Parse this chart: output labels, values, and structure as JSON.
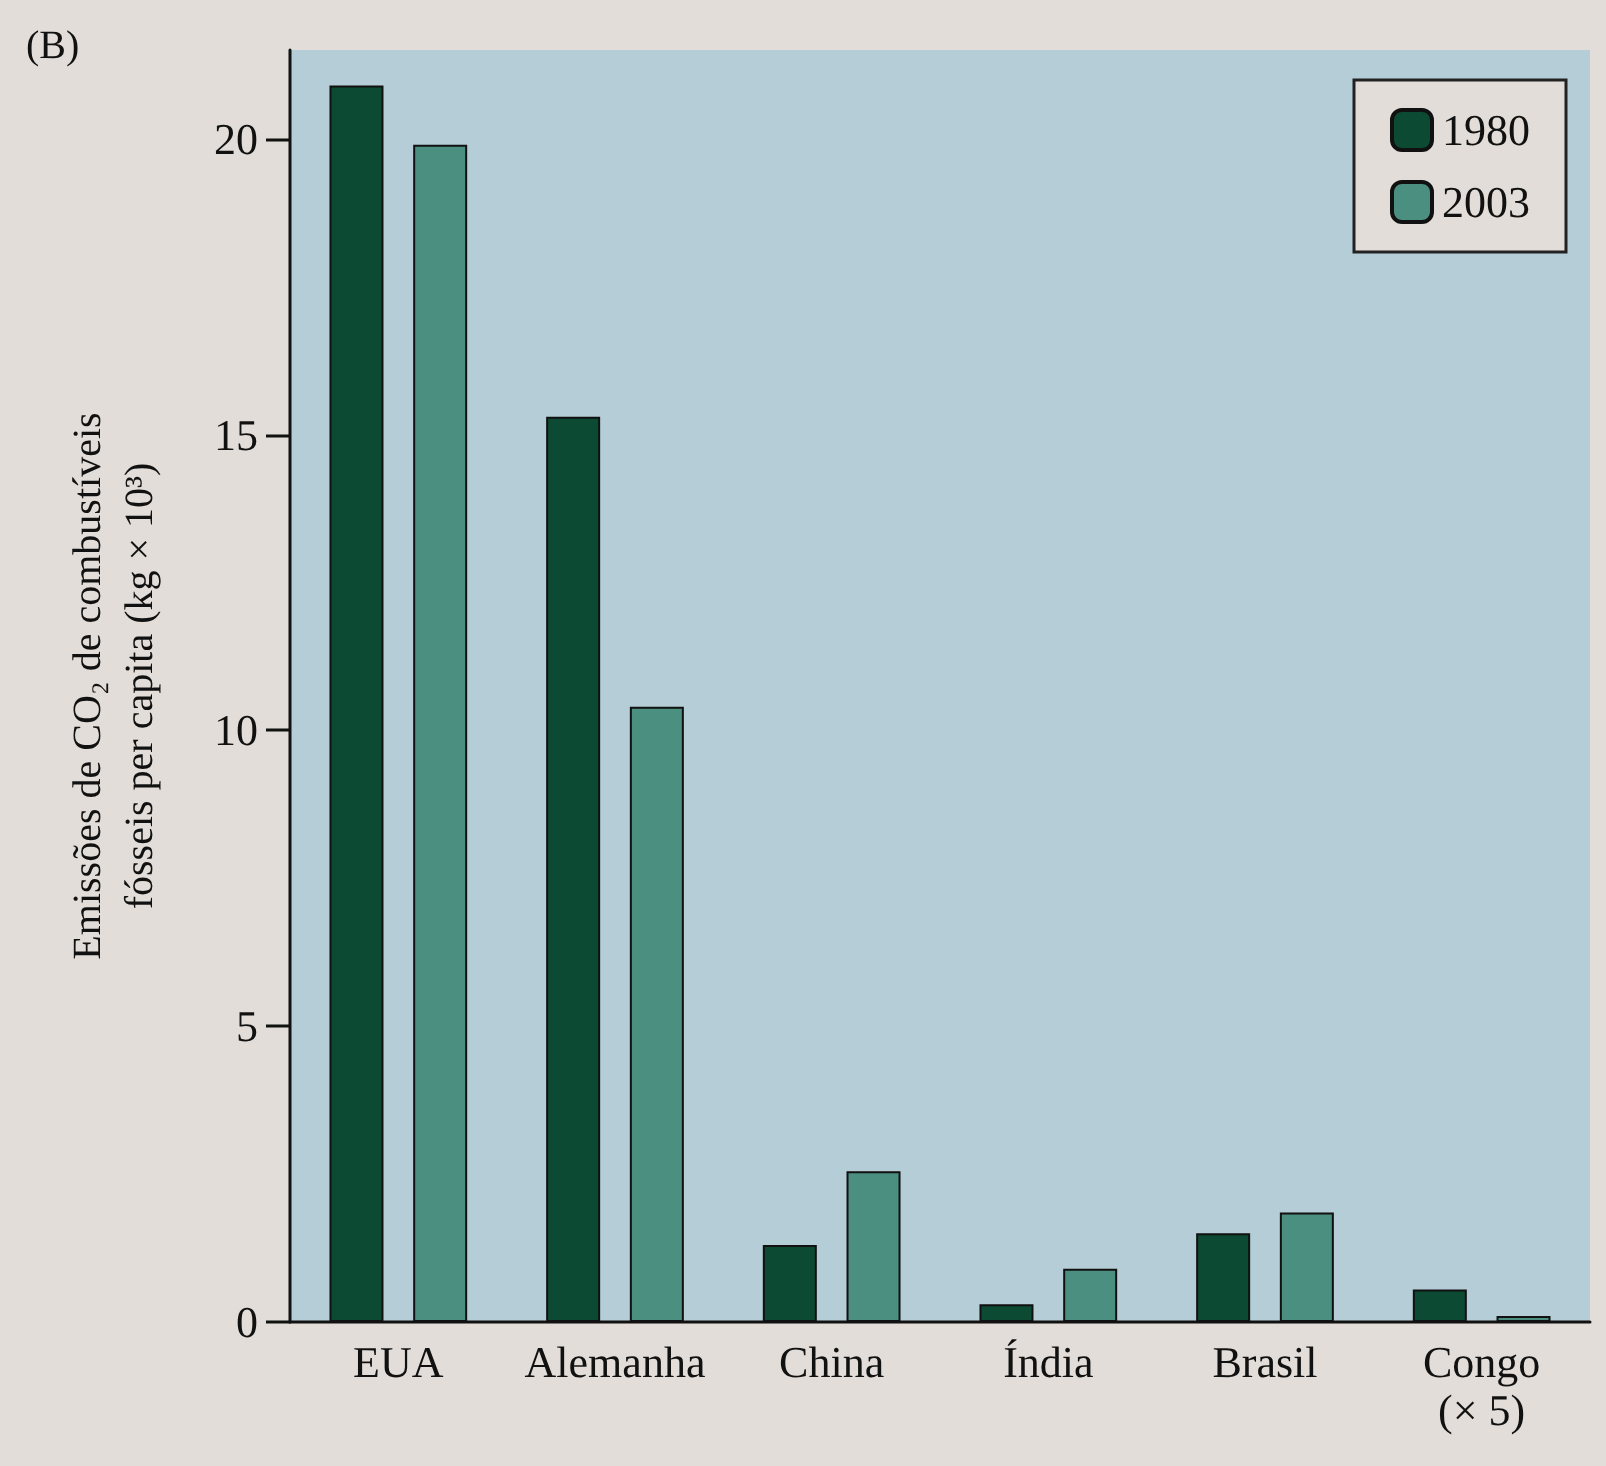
{
  "chart_data": {
    "type": "bar",
    "title": "(B)",
    "ylabel": "Emissões de CO₂ de combustíveis\nfósseis per capita (kg × 10³)",
    "categories": [
      "EUA",
      "Alemanha",
      "China",
      "Índia",
      "Brasil",
      "Congo\n(× 5)"
    ],
    "series": [
      {
        "name": "1980",
        "color": "#0d4a33",
        "values": [
          20.9,
          15.3,
          1.3,
          0.3,
          1.5,
          0.55
        ]
      },
      {
        "name": "2003",
        "color": "#4a8f80",
        "values": [
          19.9,
          10.4,
          2.55,
          0.9,
          1.85,
          0.1
        ]
      }
    ],
    "ylim": [
      0,
      21.5
    ],
    "yticks": [
      0,
      5,
      10,
      15,
      20
    ],
    "grid": false,
    "legend": "top right"
  }
}
